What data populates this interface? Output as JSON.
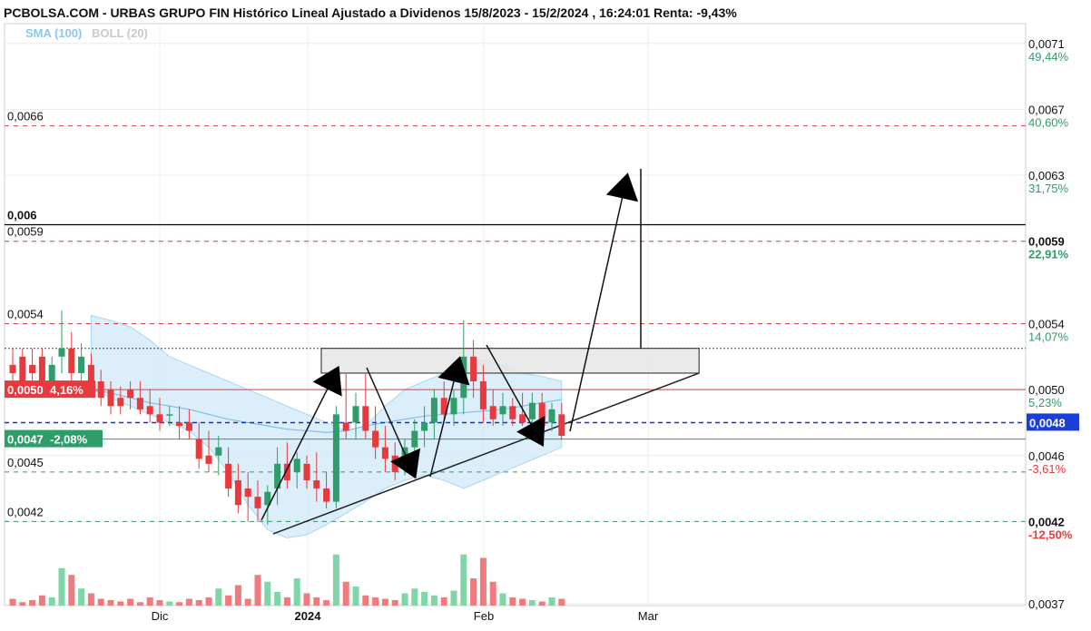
{
  "header": {
    "title": "PCBOLSA.COM - URBAS GRUPO FIN Histórico Lineal Ajustado a Dividenos 15/8/2023 - 15/2/2024 , 16:24:01 Renta: -9,43%",
    "indicator_sma": "SMA (100)",
    "indicator_boll": "BOLL (20)"
  },
  "colors": {
    "up": "#2e9d69",
    "down": "#e8393d",
    "bb_fill": "#cfe8f7",
    "resistance": "#e8393d",
    "support": "#2e9d69",
    "current": "#1a2fcf",
    "tag_red": "#e8393d",
    "tag_green": "#2e9d69",
    "tag_blue": "#1a3fd6"
  },
  "chart_data": {
    "type": "candlestick",
    "y_range": [
      0.00369,
      0.00722
    ],
    "y_axis_ticks": [
      {
        "price": "0,0071",
        "pct": "49,44%",
        "value": 0.0071,
        "color": "green",
        "bold": false
      },
      {
        "price": "0,0067",
        "pct": "40,60%",
        "value": 0.0067,
        "color": "green",
        "bold": false
      },
      {
        "price": "0,0063",
        "pct": "31,75%",
        "value": 0.0063,
        "color": "green",
        "bold": false
      },
      {
        "price": "0,0059",
        "pct": "22,91%",
        "value": 0.0059,
        "color": "green",
        "bold": true
      },
      {
        "price": "0,0054",
        "pct": "14,07%",
        "value": 0.0054,
        "color": "green",
        "bold": false
      },
      {
        "price": "0,0050",
        "pct": "5,23%",
        "value": 0.005,
        "color": "green",
        "bold": false
      },
      {
        "price": "0,0046",
        "pct": "-3,61%",
        "value": 0.0046,
        "color": "red",
        "bold": false
      },
      {
        "price": "0,0042",
        "pct": "-12,50%",
        "value": 0.0042,
        "color": "red",
        "bold": true
      },
      {
        "price": "0,0037",
        "pct": "",
        "value": 0.0037,
        "color": "green",
        "bold": false
      }
    ],
    "x_labels": [
      {
        "label": "Dic",
        "date": "2023-12-01",
        "bold": false
      },
      {
        "label": "2024",
        "date": "2024-01-01",
        "bold": true
      },
      {
        "label": "Feb",
        "date": "2024-02-01",
        "bold": false
      },
      {
        "label": "Mar",
        "date": "2024-03-01",
        "bold": false
      }
    ],
    "levels": [
      {
        "label": "0,006",
        "value": 0.006,
        "style": "solid-black"
      },
      {
        "label": "0,0066",
        "value": 0.0066,
        "style": "dashed-red"
      },
      {
        "label": "0,0059",
        "value": 0.0059,
        "style": "dashed-red"
      },
      {
        "label": "0,0054",
        "value": 0.0054,
        "style": "dashed-red"
      },
      {
        "label": "0,0045",
        "value": 0.0045,
        "style": "dashed-green"
      },
      {
        "label": "0,0042",
        "value": 0.0042,
        "style": "dashed-green"
      }
    ],
    "tags": [
      {
        "text": "0,0050  4,16%",
        "value": 0.005,
        "color": "red"
      },
      {
        "text": "0,0047  -2,08%",
        "value": 0.0047,
        "color": "green"
      }
    ],
    "current_price": {
      "label": "0,0048",
      "value": 0.0048
    },
    "candles": [
      {
        "o": 0.00515,
        "h": 0.00525,
        "l": 0.00505,
        "c": 0.0051
      },
      {
        "o": 0.0052,
        "h": 0.00525,
        "l": 0.005,
        "c": 0.00505
      },
      {
        "o": 0.00515,
        "h": 0.00525,
        "l": 0.005,
        "c": 0.0051
      },
      {
        "o": 0.0052,
        "h": 0.00525,
        "l": 0.00495,
        "c": 0.005
      },
      {
        "o": 0.00505,
        "h": 0.0052,
        "l": 0.005,
        "c": 0.00515
      },
      {
        "o": 0.0052,
        "h": 0.00548,
        "l": 0.0051,
        "c": 0.00525
      },
      {
        "o": 0.00525,
        "h": 0.00535,
        "l": 0.00505,
        "c": 0.0051
      },
      {
        "o": 0.0051,
        "h": 0.00528,
        "l": 0.005,
        "c": 0.0052
      },
      {
        "o": 0.00515,
        "h": 0.00522,
        "l": 0.00495,
        "c": 0.005
      },
      {
        "o": 0.00505,
        "h": 0.00512,
        "l": 0.0049,
        "c": 0.00495
      },
      {
        "o": 0.005,
        "h": 0.00505,
        "l": 0.00485,
        "c": 0.0049
      },
      {
        "o": 0.00495,
        "h": 0.00502,
        "l": 0.00485,
        "c": 0.0049
      },
      {
        "o": 0.005,
        "h": 0.00505,
        "l": 0.00488,
        "c": 0.00495
      },
      {
        "o": 0.00495,
        "h": 0.00505,
        "l": 0.00485,
        "c": 0.00488
      },
      {
        "o": 0.0049,
        "h": 0.005,
        "l": 0.0048,
        "c": 0.00485
      },
      {
        "o": 0.00485,
        "h": 0.00495,
        "l": 0.00475,
        "c": 0.0048
      },
      {
        "o": 0.00485,
        "h": 0.0049,
        "l": 0.00478,
        "c": 0.00485
      },
      {
        "o": 0.0048,
        "h": 0.0049,
        "l": 0.0047,
        "c": 0.00478
      },
      {
        "o": 0.0048,
        "h": 0.00488,
        "l": 0.0047,
        "c": 0.00475
      },
      {
        "o": 0.0047,
        "h": 0.0048,
        "l": 0.00452,
        "c": 0.00458
      },
      {
        "o": 0.0046,
        "h": 0.00475,
        "l": 0.0045,
        "c": 0.00455
      },
      {
        "o": 0.0046,
        "h": 0.00472,
        "l": 0.00448,
        "c": 0.00465
      },
      {
        "o": 0.00455,
        "h": 0.00465,
        "l": 0.00435,
        "c": 0.0044
      },
      {
        "o": 0.00445,
        "h": 0.00455,
        "l": 0.00425,
        "c": 0.0043
      },
      {
        "o": 0.0044,
        "h": 0.0045,
        "l": 0.0042,
        "c": 0.00435
      },
      {
        "o": 0.00435,
        "h": 0.00445,
        "l": 0.0042,
        "c": 0.00428
      },
      {
        "o": 0.0043,
        "h": 0.00442,
        "l": 0.00418,
        "c": 0.00438
      },
      {
        "o": 0.0044,
        "h": 0.00465,
        "l": 0.0043,
        "c": 0.00455
      },
      {
        "o": 0.00455,
        "h": 0.00468,
        "l": 0.0044,
        "c": 0.00445
      },
      {
        "o": 0.0045,
        "h": 0.00462,
        "l": 0.0044,
        "c": 0.00458
      },
      {
        "o": 0.00455,
        "h": 0.0046,
        "l": 0.0044,
        "c": 0.00445
      },
      {
        "o": 0.00445,
        "h": 0.00462,
        "l": 0.00432,
        "c": 0.0044
      },
      {
        "o": 0.0044,
        "h": 0.0045,
        "l": 0.00428,
        "c": 0.00432
      },
      {
        "o": 0.00432,
        "h": 0.0049,
        "l": 0.00428,
        "c": 0.00485
      },
      {
        "o": 0.0048,
        "h": 0.0051,
        "l": 0.0047,
        "c": 0.00475
      },
      {
        "o": 0.0048,
        "h": 0.00498,
        "l": 0.0047,
        "c": 0.0049
      },
      {
        "o": 0.0049,
        "h": 0.0051,
        "l": 0.0047,
        "c": 0.00475
      },
      {
        "o": 0.00475,
        "h": 0.0049,
        "l": 0.00458,
        "c": 0.00465
      },
      {
        "o": 0.00465,
        "h": 0.00478,
        "l": 0.0045,
        "c": 0.00458
      },
      {
        "o": 0.0046,
        "h": 0.00468,
        "l": 0.00445,
        "c": 0.0045
      },
      {
        "o": 0.00455,
        "h": 0.0047,
        "l": 0.00448,
        "c": 0.00465
      },
      {
        "o": 0.00465,
        "h": 0.00482,
        "l": 0.00455,
        "c": 0.00475
      },
      {
        "o": 0.00475,
        "h": 0.0049,
        "l": 0.00465,
        "c": 0.0048
      },
      {
        "o": 0.0048,
        "h": 0.005,
        "l": 0.0047,
        "c": 0.00495
      },
      {
        "o": 0.00495,
        "h": 0.00505,
        "l": 0.0048,
        "c": 0.00485
      },
      {
        "o": 0.00485,
        "h": 0.005,
        "l": 0.00478,
        "c": 0.00495
      },
      {
        "o": 0.00495,
        "h": 0.00542,
        "l": 0.00485,
        "c": 0.0052
      },
      {
        "o": 0.0052,
        "h": 0.0053,
        "l": 0.00495,
        "c": 0.00505
      },
      {
        "o": 0.00505,
        "h": 0.00515,
        "l": 0.0048,
        "c": 0.00488
      },
      {
        "o": 0.0049,
        "h": 0.005,
        "l": 0.00478,
        "c": 0.00482
      },
      {
        "o": 0.00485,
        "h": 0.00498,
        "l": 0.00478,
        "c": 0.0049
      },
      {
        "o": 0.0049,
        "h": 0.00495,
        "l": 0.00478,
        "c": 0.00482
      },
      {
        "o": 0.00485,
        "h": 0.00498,
        "l": 0.00478,
        "c": 0.0048
      },
      {
        "o": 0.00482,
        "h": 0.00498,
        "l": 0.00478,
        "c": 0.00492
      },
      {
        "o": 0.00492,
        "h": 0.00498,
        "l": 0.00475,
        "c": 0.00478
      },
      {
        "o": 0.0048,
        "h": 0.00492,
        "l": 0.00475,
        "c": 0.00488
      },
      {
        "o": 0.00485,
        "h": 0.00492,
        "l": 0.0047,
        "c": 0.00472
      }
    ],
    "bollinger": {
      "upper": [
        0.00545,
        0.00542,
        0.00538,
        0.0053,
        0.0052,
        0.00515,
        0.0051,
        0.00505,
        0.005,
        0.00495,
        0.0049,
        0.00485,
        0.0048,
        0.00475,
        0.00478,
        0.0049,
        0.005,
        0.00505,
        0.0051,
        0.00515,
        0.00518,
        0.00515,
        0.0051,
        0.00508,
        0.00505
      ],
      "lower": [
        0.005,
        0.00495,
        0.0049,
        0.00485,
        0.0048,
        0.00475,
        0.00465,
        0.0045,
        0.0043,
        0.00415,
        0.0041,
        0.00412,
        0.00418,
        0.00425,
        0.00432,
        0.0044,
        0.00445,
        0.00448,
        0.00445,
        0.0044,
        0.00445,
        0.0045,
        0.00455,
        0.0046,
        0.00465
      ]
    },
    "sma100": [
      0.005,
      0.00498,
      0.00495,
      0.00492,
      0.0049,
      0.00488,
      0.00485,
      0.00482,
      0.0048,
      0.00478,
      0.00476,
      0.00475,
      0.00474,
      0.00475,
      0.00478,
      0.0048,
      0.00482,
      0.00484,
      0.00485,
      0.00486,
      0.00487,
      0.00488,
      0.0049,
      0.00492,
      0.00494
    ],
    "volume": [
      0.1,
      0.05,
      0.08,
      0.15,
      0.12,
      0.55,
      0.45,
      0.25,
      0.18,
      0.1,
      0.08,
      0.06,
      0.1,
      0.05,
      0.12,
      0.08,
      0.06,
      0.05,
      0.1,
      0.08,
      0.12,
      0.25,
      0.15,
      0.3,
      0.1,
      0.45,
      0.35,
      0.2,
      0.12,
      0.4,
      0.18,
      0.12,
      0.08,
      0.75,
      0.35,
      0.28,
      0.15,
      0.12,
      0.1,
      0.08,
      0.18,
      0.25,
      0.2,
      0.15,
      0.12,
      0.22,
      0.75,
      0.4,
      0.7,
      0.35,
      0.18,
      0.12,
      0.1,
      0.08,
      0.06,
      0.12,
      0.1
    ],
    "drawn_shapes": {
      "rectangle": {
        "top": 0.00525,
        "bottom": 0.0051,
        "from_index": 30,
        "to_date": "2024-03-10"
      },
      "trendline": {
        "from": {
          "index": 21,
          "value": 0.00418
        },
        "to": {
          "date": "2024-03-10",
          "value": 0.0051
        }
      },
      "target_line": {
        "from": {
          "index": 56,
          "value": 0.00472
        },
        "to": {
          "date": "2024-02-29",
          "value": 0.00635
        }
      }
    }
  }
}
